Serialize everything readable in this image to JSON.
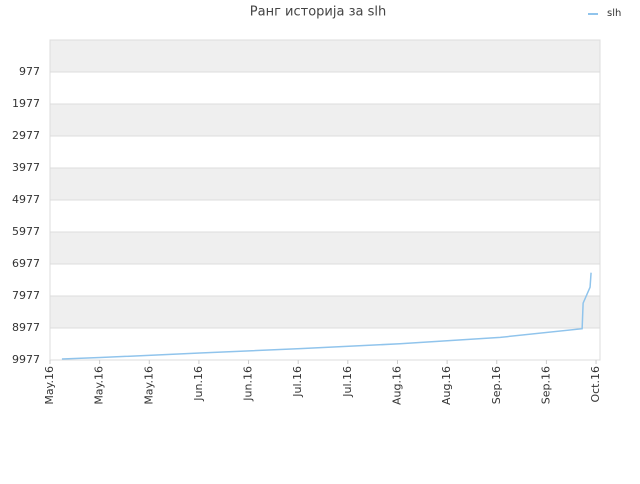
{
  "chart_data": {
    "type": "line",
    "title": "Ранг историја за slh",
    "x": [
      0.24,
      1.01,
      3.02,
      5.04,
      7.05,
      9.07,
      10.72,
      10.74,
      10.88,
      10.9
    ],
    "series": [
      {
        "name": "slh",
        "color": "#90c4ec",
        "values": [
          9945,
          9900,
          9760,
          9620,
          9470,
          9270,
          9000,
          8200,
          7700,
          7250
        ]
      }
    ],
    "xlim": [
      0,
      11.08
    ],
    "xticks": [
      {
        "value": 0,
        "label": "May.16"
      },
      {
        "value": 1,
        "label": "May.16"
      },
      {
        "value": 2,
        "label": "May.16"
      },
      {
        "value": 3,
        "label": "Jun.16"
      },
      {
        "value": 4,
        "label": "Jun.16"
      },
      {
        "value": 5,
        "label": "Jul.16"
      },
      {
        "value": 6,
        "label": "Jul.16"
      },
      {
        "value": 7,
        "label": "Aug.16"
      },
      {
        "value": 8,
        "label": "Aug.16"
      },
      {
        "value": 9,
        "label": "Sep.16"
      },
      {
        "value": 10,
        "label": "Sep.16"
      },
      {
        "value": 11,
        "label": "Oct.16"
      }
    ],
    "ylim": [
      -23,
      9977
    ],
    "y_inverted": true,
    "yticks": [
      977,
      1977,
      2977,
      3977,
      4977,
      5977,
      6977,
      7977,
      8977,
      9977
    ],
    "grid": true,
    "legend": "top-right"
  }
}
